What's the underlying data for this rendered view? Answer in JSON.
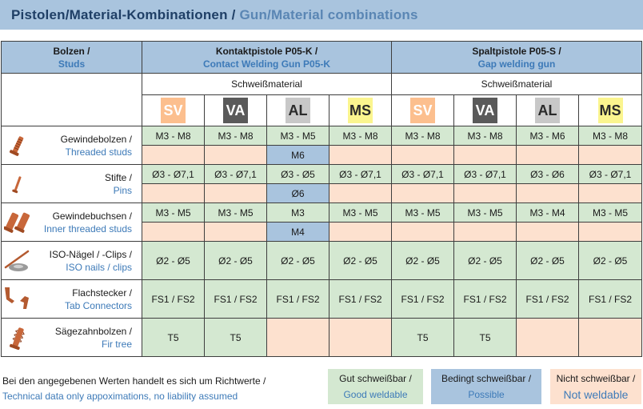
{
  "title": {
    "de": "Pistolen/Material-Kombinationen /",
    "en": " Gun/Material combinations"
  },
  "header": {
    "studs_de": "Bolzen /",
    "studs_en": "Studs",
    "gun1_de": "Kontaktpistole P05-K /",
    "gun1_en": "Contact Welding Gun P05-K",
    "gun2_de": "Spaltpistole P05-S /",
    "gun2_en": "Gap welding gun",
    "material_label_1": "Schweißmaterial",
    "material_label_2": "Schweißmaterial"
  },
  "materials": [
    "SV",
    "VA",
    "AL",
    "MS",
    "SV",
    "VA",
    "AL",
    "MS"
  ],
  "colors": {
    "good": "#d4e8d1",
    "conditional": "#a9c4de",
    "not": "#fde1cf",
    "SV": "#fcbf8e",
    "VA": "#5a5a5a",
    "AL": "#c8c8c8",
    "MS": "#fbf58f"
  },
  "rows": [
    {
      "de": "Gewindebolzen /",
      "en": "Threaded studs",
      "icon": "threaded-stud-icon",
      "line1": [
        "M3 - M8",
        "M3 - M8",
        "M3 - M5",
        "M3 - M8",
        "M3 - M8",
        "M3 - M8",
        "M3 - M6",
        "M3 - M8"
      ],
      "line2": [
        "",
        "",
        "M6",
        "",
        "",
        "",
        "",
        ""
      ]
    },
    {
      "de": "Stifte /",
      "en": "Pins",
      "icon": "pin-icon",
      "line1": [
        "Ø3 - Ø7,1",
        "Ø3 - Ø7,1",
        "Ø3 - Ø5",
        "Ø3 - Ø7,1",
        "Ø3 - Ø7,1",
        "Ø3 - Ø7,1",
        "Ø3 - Ø6",
        "Ø3 - Ø7,1"
      ],
      "line2": [
        "",
        "",
        "Ø6",
        "",
        "",
        "",
        "",
        ""
      ]
    },
    {
      "de": "Gewindebuchsen /",
      "en": "Inner threaded studs",
      "icon": "inner-threaded-stud-icon",
      "line1": [
        "M3 - M5",
        "M3 - M5",
        "M3",
        "M3 - M5",
        "M3 - M5",
        "M3 - M5",
        "M3 - M4",
        "M3 - M5"
      ],
      "line2": [
        "",
        "",
        "M4",
        "",
        "",
        "",
        "",
        ""
      ]
    },
    {
      "de": "ISO-Nägel / -Clips /",
      "en": "ISO nails / clips",
      "icon": "iso-nail-clip-icon",
      "values": [
        "Ø2 - Ø5",
        "Ø2 - Ø5",
        "Ø2 - Ø5",
        "Ø2 - Ø5",
        "Ø2 - Ø5",
        "Ø2 - Ø5",
        "Ø2 - Ø5",
        "Ø2 - Ø5"
      ]
    },
    {
      "de": "Flachstecker /",
      "en": "Tab Connectors",
      "icon": "tab-connector-icon",
      "values": [
        "FS1 / FS2",
        "FS1 / FS2",
        "FS1 / FS2",
        "FS1 / FS2",
        "FS1 / FS2",
        "FS1 / FS2",
        "FS1 / FS2",
        "FS1 / FS2"
      ]
    },
    {
      "de": "Sägezahnbolzen  /",
      "en": "Fir tree",
      "icon": "fir-tree-stud-icon",
      "values": [
        "T5",
        "T5",
        "",
        "",
        "T5",
        "T5",
        "",
        ""
      ]
    }
  ],
  "footer": {
    "note_de": "Bei den angegebenen Werten handelt es sich um Richtwerte /",
    "note_en": "Technical data only appoximations, no liability assumed",
    "good_de": "Gut schweißbar /",
    "good_en": "Good weldable",
    "cond_de": "Bedingt schweißbar /",
    "cond_en": "Possible",
    "not_de": "Nicht schweißbar /",
    "not_en": "Not weldable"
  }
}
